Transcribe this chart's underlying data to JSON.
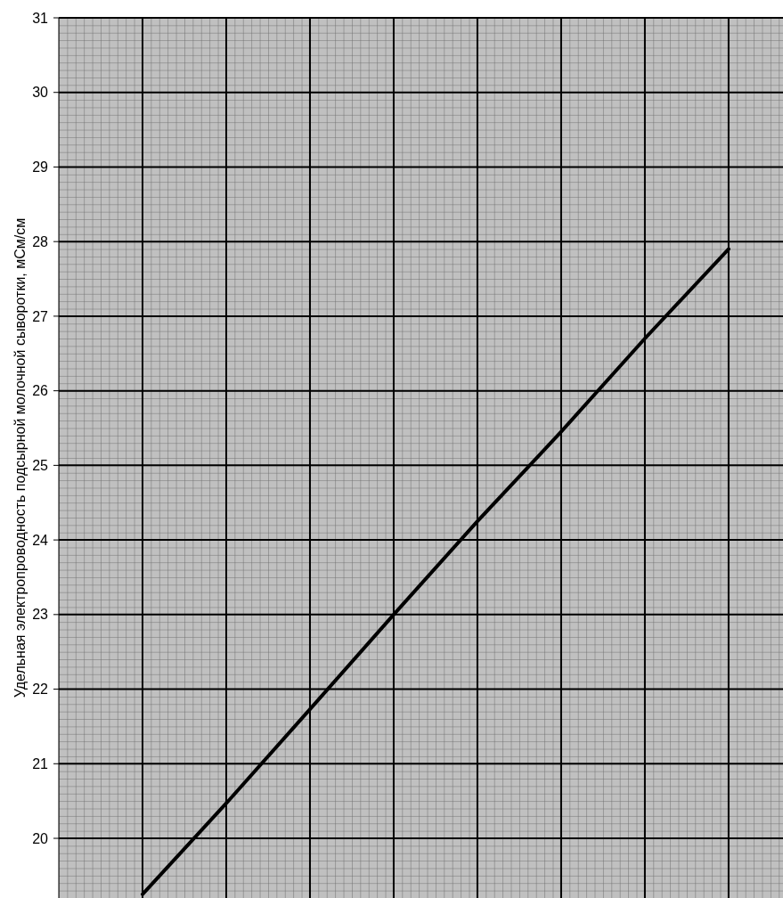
{
  "chart_data": {
    "type": "line",
    "ylabel": "Удельная электропроводность подсырной молочной сыворотки, мСм/см",
    "categories": [
      null,
      null,
      null,
      null,
      null,
      null,
      null,
      null
    ],
    "series": [
      {
        "color": "#000000",
        "values": [
          19.25,
          20.47,
          21.73,
          23.0,
          24.25,
          25.45,
          26.7,
          27.9
        ]
      }
    ],
    "ylim": [
      19.2,
      31
    ],
    "yticks": [
      20,
      21,
      22,
      23,
      24,
      25,
      26,
      27,
      28,
      29,
      30,
      31
    ],
    "grid": true,
    "tick_labels": "y",
    "marker": "none",
    "line_style": "solid"
  }
}
